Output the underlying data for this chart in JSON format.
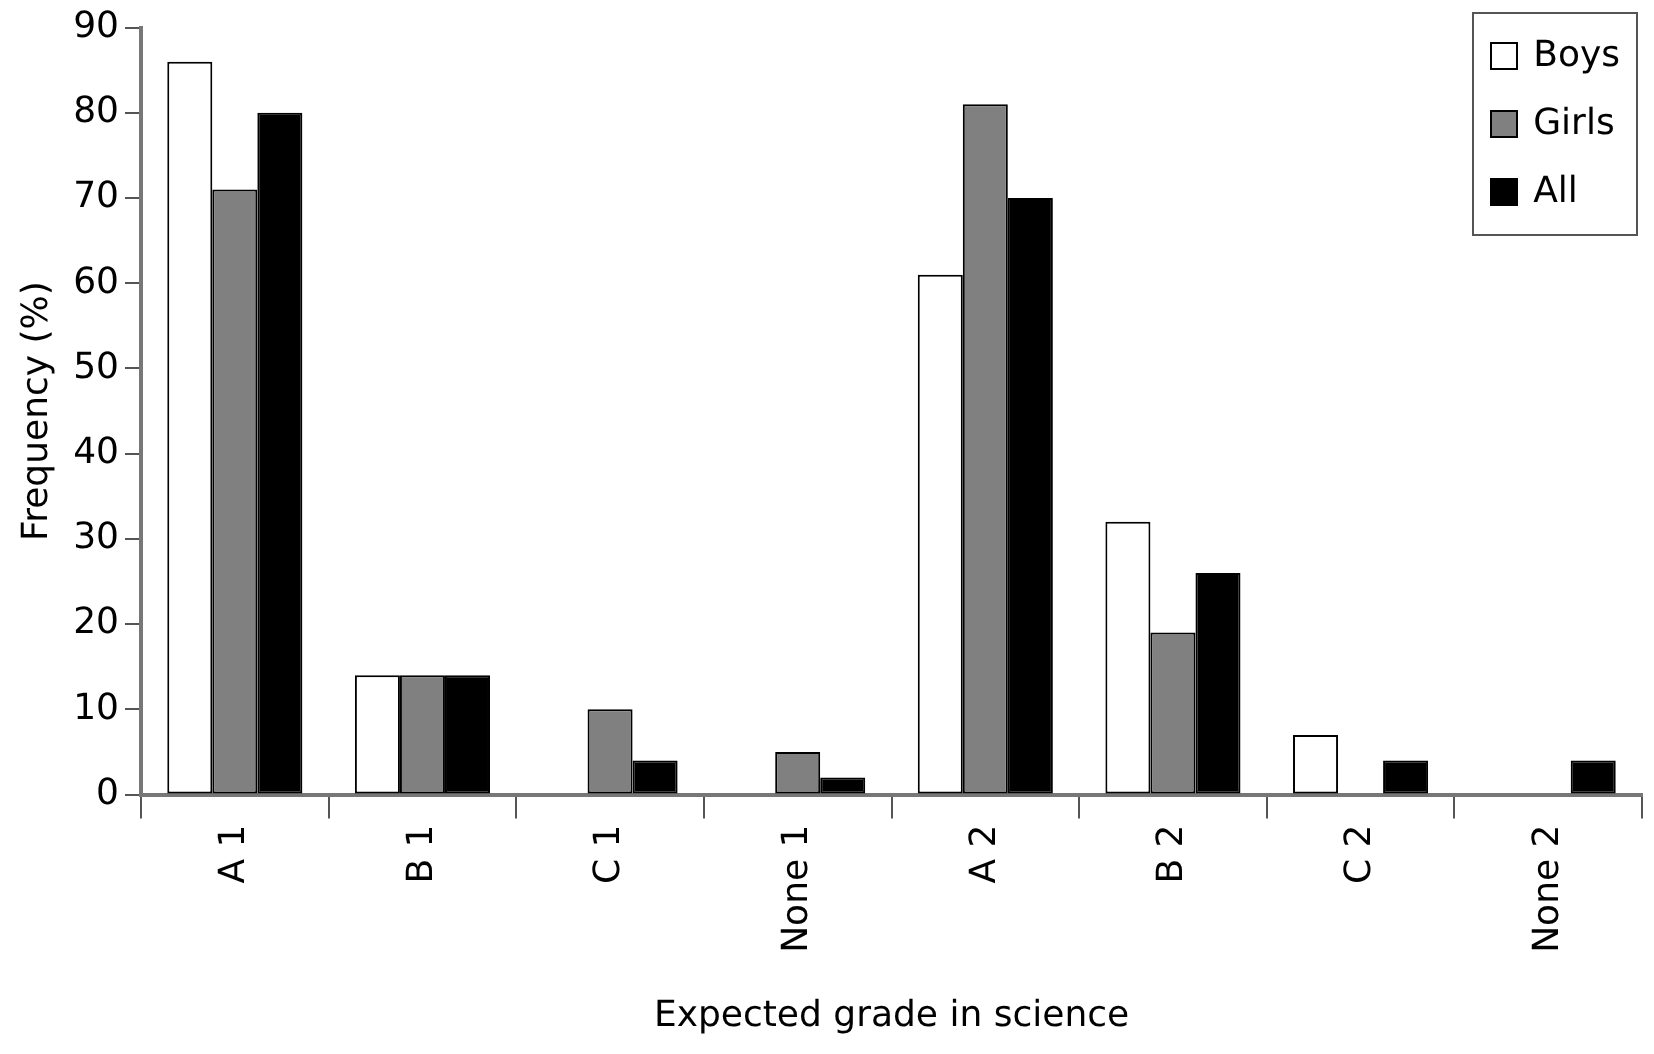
{
  "chart_data": {
    "type": "bar",
    "xlabel": "Expected grade in science",
    "ylabel": "Frequency (%)",
    "categories": [
      "A 1",
      "B 1",
      "C 1",
      "None 1",
      "A 2",
      "B 2",
      "C 2",
      "None 2"
    ],
    "series": [
      {
        "name": "Boys",
        "color": "#ffffff",
        "values": [
          86,
          14,
          0,
          0,
          61,
          32,
          7,
          0
        ]
      },
      {
        "name": "Girls",
        "color": "#808080",
        "values": [
          71,
          14,
          10,
          5,
          81,
          19,
          0,
          0
        ]
      },
      {
        "name": "All",
        "color": "#000000",
        "values": [
          80,
          14,
          4,
          2,
          70,
          26,
          4,
          4
        ]
      }
    ],
    "ylim": [
      0,
      90
    ],
    "yticks": [
      0,
      10,
      20,
      30,
      40,
      50,
      60,
      70,
      80,
      90
    ],
    "grid": false,
    "legend": "top right"
  }
}
